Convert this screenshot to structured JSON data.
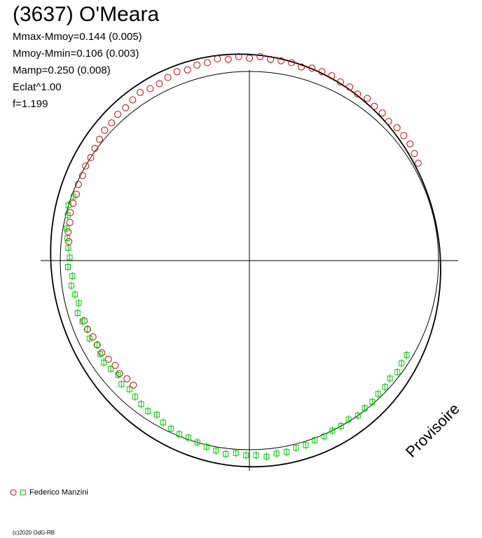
{
  "header": {
    "title": "(3637) O'Meara",
    "stats": [
      "Mmax-Mmoy=0.144 (0.005)",
      "Mmoy-Mmin=0.106 (0.003)",
      "Mamp=0.250 (0.008)",
      "Eclat^1.00",
      "f=1.199"
    ]
  },
  "legend": {
    "label": "Federico Manzini"
  },
  "footer": {
    "copyright": "(c)2020 OdG-RB",
    "watermark": "Provisoire"
  },
  "colors": {
    "observer1": "#cc0000",
    "observer2": "#00cc00",
    "axes": "#000000"
  },
  "chart_data": {
    "type": "scatter",
    "subtype": "polar-lightcurve",
    "title": "(3637) O'Meara",
    "angle_unit": "degrees (rotational phase, counter-clockwise from +x)",
    "reference_circle_radius": 1.0,
    "fit_curve": {
      "mean_radius": 1.06,
      "harmonics": [
        {
          "n": 1,
          "a": -0.02,
          "b": 0.0
        },
        {
          "n": 2,
          "a": -0.03,
          "b": -0.02
        }
      ]
    },
    "series": [
      {
        "name": "Federico Manzini",
        "marker": "circle",
        "color": "#cc0000",
        "points": [
          [
            30,
            1.03
          ],
          [
            33,
            1.04
          ],
          [
            36,
            1.05
          ],
          [
            39,
            1.05
          ],
          [
            42,
            1.05
          ],
          [
            45,
            1.04
          ],
          [
            48,
            1.05
          ],
          [
            51,
            1.05
          ],
          [
            54,
            1.06
          ],
          [
            57,
            1.05
          ],
          [
            60,
            1.06
          ],
          [
            63,
            1.06
          ],
          [
            66,
            1.07
          ],
          [
            69,
            1.07
          ],
          [
            72,
            1.07
          ],
          [
            75,
            1.06
          ],
          [
            78,
            1.07
          ],
          [
            81,
            1.07
          ],
          [
            84,
            1.07
          ],
          [
            87,
            1.08
          ],
          [
            90,
            1.07
          ],
          [
            93,
            1.08
          ],
          [
            96,
            1.07
          ],
          [
            99,
            1.08
          ],
          [
            102,
            1.07
          ],
          [
            105,
            1.07
          ],
          [
            108,
            1.06
          ],
          [
            111,
            1.07
          ],
          [
            114,
            1.06
          ],
          [
            117,
            1.05
          ],
          [
            120,
            1.05
          ],
          [
            123,
            1.06
          ],
          [
            126,
            1.05
          ],
          [
            129,
            1.04
          ],
          [
            132,
            1.04
          ],
          [
            135,
            1.03
          ],
          [
            138,
            1.03
          ],
          [
            141,
            1.02
          ],
          [
            144,
            1.01
          ],
          [
            147,
            1.0
          ],
          [
            150,
            1.0
          ],
          [
            153,
            0.99
          ],
          [
            156,
            0.99
          ],
          [
            159,
            0.98
          ],
          [
            162,
            0.98
          ],
          [
            165,
            0.98
          ],
          [
            168,
            0.97
          ],
          [
            171,
            0.97
          ],
          [
            174,
            0.96
          ],
          [
            200,
            0.93
          ],
          [
            203,
            0.93
          ],
          [
            206,
            0.92
          ],
          [
            209,
            0.92
          ],
          [
            212,
            0.92
          ],
          [
            215,
            0.91
          ],
          [
            218,
            0.9
          ],
          [
            221,
            0.91
          ],
          [
            224,
            0.9
          ],
          [
            227,
            0.9
          ]
        ]
      },
      {
        "name": "",
        "marker": "square",
        "color": "#00cc00",
        "points": [
          [
            160,
            0.99
          ],
          [
            163,
            1.0
          ],
          [
            166,
            0.99
          ],
          [
            170,
            0.98
          ],
          [
            173,
            0.97
          ],
          [
            176,
            0.96
          ],
          [
            179,
            0.95
          ],
          [
            182,
            0.96
          ],
          [
            185,
            0.94
          ],
          [
            188,
            0.95
          ],
          [
            191,
            0.94
          ],
          [
            194,
            0.93
          ],
          [
            197,
            0.95
          ],
          [
            200,
            0.94
          ],
          [
            203,
            0.93
          ],
          [
            206,
            0.94
          ],
          [
            209,
            0.92
          ],
          [
            212,
            0.93
          ],
          [
            215,
            0.94
          ],
          [
            218,
            0.93
          ],
          [
            221,
            0.92
          ],
          [
            224,
            0.94
          ],
          [
            227,
            0.93
          ],
          [
            230,
            0.94
          ],
          [
            233,
            0.95
          ],
          [
            236,
            0.96
          ],
          [
            239,
            0.95
          ],
          [
            242,
            0.97
          ],
          [
            245,
            0.98
          ],
          [
            248,
            0.99
          ],
          [
            251,
            0.99
          ],
          [
            254,
            1.0
          ],
          [
            257,
            1.01
          ],
          [
            260,
            1.02
          ],
          [
            263,
            1.03
          ],
          [
            266,
            1.02
          ],
          [
            269,
            1.03
          ],
          [
            272,
            1.03
          ],
          [
            275,
            1.04
          ],
          [
            278,
            1.03
          ],
          [
            281,
            1.03
          ],
          [
            284,
            1.02
          ],
          [
            287,
            1.02
          ],
          [
            290,
            1.01
          ],
          [
            293,
            1.01
          ],
          [
            296,
            1.0
          ],
          [
            299,
            1.0
          ],
          [
            302,
            0.99
          ],
          [
            305,
            1.0
          ],
          [
            308,
            0.99
          ],
          [
            311,
            0.99
          ],
          [
            314,
            0.98
          ],
          [
            317,
            0.98
          ],
          [
            320,
            0.97
          ],
          [
            323,
            0.98
          ],
          [
            326,
            0.97
          ],
          [
            329,
            0.97
          ]
        ]
      }
    ]
  }
}
